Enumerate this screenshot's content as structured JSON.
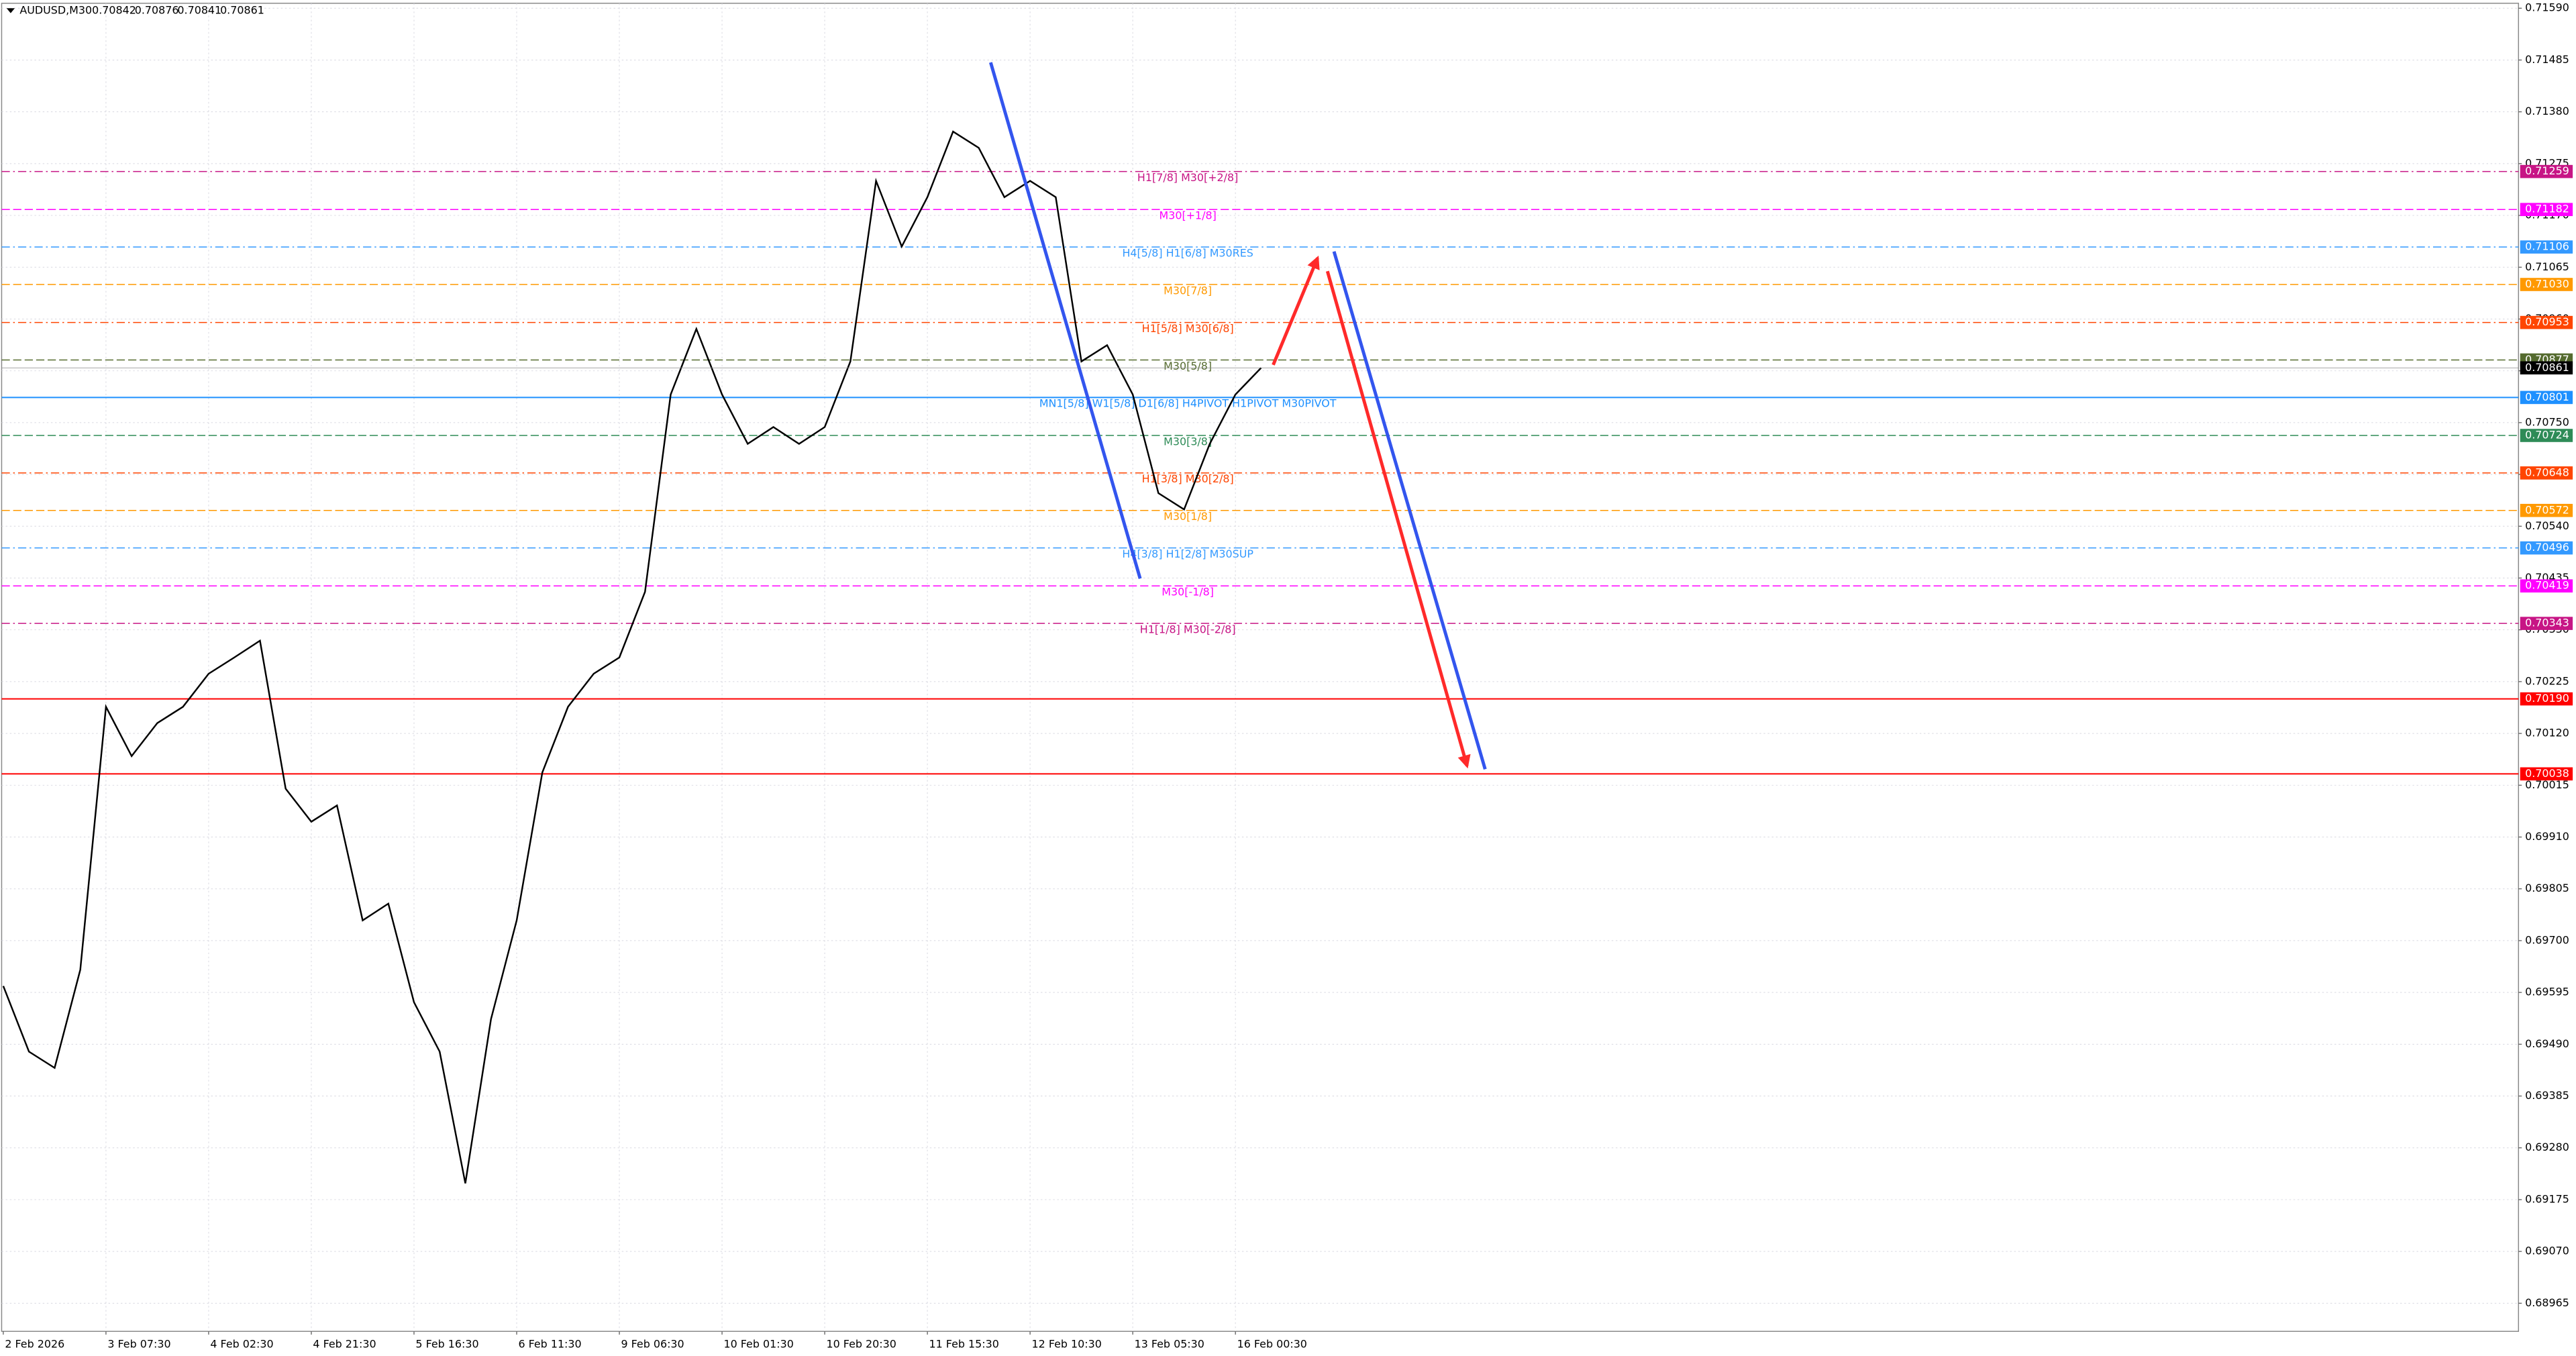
{
  "chart_data": {
    "type": "line",
    "title": "AUDUSD,M30",
    "ohlc": [
      0.70842,
      0.70876,
      0.70841,
      0.70861
    ],
    "color": "#000000",
    "categories": [
      "2 Feb 2026",
      null,
      null,
      null,
      "3 Feb 07:30",
      null,
      null,
      null,
      "4 Feb 02:30",
      null,
      null,
      null,
      "4 Feb 21:30",
      null,
      null,
      null,
      "5 Feb 16:30",
      null,
      null,
      null,
      "6 Feb 11:30",
      null,
      null,
      null,
      "9 Feb 06:30",
      null,
      null,
      null,
      "10 Feb 01:30",
      null,
      null,
      null,
      "10 Feb 20:30",
      null,
      null,
      null,
      "11 Feb 15:30",
      null,
      null,
      null,
      "12 Feb 10:30",
      null,
      null,
      null,
      "13 Feb 05:30",
      null,
      null,
      null,
      "16 Feb 00:30",
      null
    ],
    "values": [
      0.69608,
      0.69475,
      0.69442,
      0.69641,
      0.70174,
      0.70074,
      0.70141,
      0.70174,
      0.70241,
      0.70274,
      0.70308,
      0.70008,
      0.69941,
      0.69974,
      0.69741,
      0.69775,
      0.69575,
      0.69475,
      0.69208,
      0.69541,
      0.69741,
      0.70041,
      0.70174,
      0.70241,
      0.70274,
      0.70407,
      0.70807,
      0.7094,
      0.70807,
      0.70707,
      0.70741,
      0.70707,
      0.70741,
      0.70874,
      0.7124,
      0.71107,
      0.71207,
      0.7134,
      0.71307,
      0.71207,
      0.7124,
      0.71207,
      0.70874,
      0.70907,
      0.70807,
      0.70607,
      0.70574,
      0.70707,
      0.70807,
      0.70861
    ],
    "ylim": [
      0.68908,
      0.716
    ],
    "yticks": [
      {
        "value": 0.7159,
        "label": "0.71590"
      },
      {
        "value": 0.71485,
        "label": "0.71485"
      },
      {
        "value": 0.7138,
        "label": "0.71380"
      },
      {
        "value": 0.71275,
        "label": "0.71275"
      },
      {
        "value": 0.7117,
        "label": "0.71170"
      },
      {
        "value": 0.71065,
        "label": "0.71065"
      },
      {
        "value": 0.7096,
        "label": "0.70960"
      },
      {
        "value": 0.70855,
        "label": "0.70855"
      },
      {
        "value": 0.7075,
        "label": "0.70750"
      },
      {
        "value": 0.70645,
        "label": "0.70645"
      },
      {
        "value": 0.7054,
        "label": "0.70540"
      },
      {
        "value": 0.70435,
        "label": "0.70435"
      },
      {
        "value": 0.7033,
        "label": "0.70330"
      },
      {
        "value": 0.70225,
        "label": "0.70225"
      },
      {
        "value": 0.7012,
        "label": "0.70120"
      },
      {
        "value": 0.70015,
        "label": "0.70015"
      },
      {
        "value": 0.6991,
        "label": "0.69910"
      },
      {
        "value": 0.69805,
        "label": "0.69805"
      },
      {
        "value": 0.697,
        "label": "0.69700"
      },
      {
        "value": 0.69595,
        "label": "0.69595"
      },
      {
        "value": 0.6949,
        "label": "0.69490"
      },
      {
        "value": 0.69385,
        "label": "0.69385"
      },
      {
        "value": 0.6928,
        "label": "0.69280"
      },
      {
        "value": 0.69175,
        "label": "0.69175"
      },
      {
        "value": 0.6907,
        "label": "0.69070"
      },
      {
        "value": 0.68965,
        "label": "0.68965"
      }
    ],
    "grid": true,
    "levels": [
      {
        "value": 0.71259,
        "label": "0.71259",
        "text": "H1[7/8] M30[+2/8]",
        "color": "#c71585"
      },
      {
        "value": 0.71182,
        "label": "0.71182",
        "text": "M30[+1/8]",
        "color": "#ff00ff"
      },
      {
        "value": 0.71106,
        "label": "0.71106",
        "text": "H4[5/8] H1[6/8] M30RES",
        "color": "#3399ff"
      },
      {
        "value": 0.7103,
        "label": "0.71030",
        "text": "M30[7/8]",
        "color": "#ff9900"
      },
      {
        "value": 0.70953,
        "label": "0.70953",
        "text": "H1[5/8] M30[6/8]",
        "color": "#ff4500"
      },
      {
        "value": 0.70877,
        "label": "0.70877",
        "text": "M30[5/8]",
        "color": "#556b2f"
      },
      {
        "value": 0.70801,
        "label": "0.70801",
        "text": "MN1[5/8] W1[5/8] D1[6/8] H4PIVOT H1PIVOT M30PIVOT",
        "color": "#1e90ff"
      },
      {
        "value": 0.70724,
        "label": "0.70724",
        "text": "M30[3/8]",
        "color": "#2e8b57"
      },
      {
        "value": 0.70648,
        "label": "0.70648",
        "text": "H1[3/8] M30[2/8]",
        "color": "#ff4500"
      },
      {
        "value": 0.70572,
        "label": "0.70572",
        "text": "M30[1/8]",
        "color": "#ff9900"
      },
      {
        "value": 0.70496,
        "label": "0.70496",
        "text": "H4[3/8] H1[2/8] M30SUP",
        "color": "#3399ff"
      },
      {
        "value": 0.70419,
        "label": "0.70419",
        "text": "M30[-1/8]",
        "color": "#ff00ff"
      },
      {
        "value": 0.70343,
        "label": "0.70343",
        "text": "H1[1/8] M30[-2/8]",
        "color": "#c71585"
      },
      {
        "value": 0.7019,
        "label": "0.70190",
        "color": "#ff0000"
      },
      {
        "value": 0.70038,
        "label": "0.70038",
        "color": "#ff0000"
      }
    ]
  }
}
